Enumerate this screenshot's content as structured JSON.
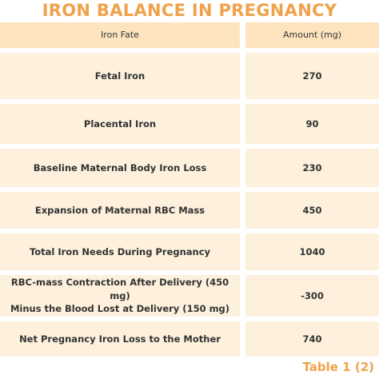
{
  "title": "IRON BALANCE IN PREGNANCY",
  "table": {
    "header": [
      "Iron Fate",
      "Amount (mg)"
    ],
    "rows": [
      [
        "Fetal Iron",
        270
      ],
      [
        "Placental Iron",
        90
      ],
      [
        "Baseline Maternal Body Iron Loss",
        230
      ],
      [
        "Expansion of Maternal RBC Mass",
        450
      ],
      [
        "Total Iron Needs During Pregnancy",
        1040
      ],
      [
        "RBC-mass Contraction After Delivery (450 mg)\nMinus the Blood Lost at Delivery (150 mg)",
        -300
      ],
      [
        "Net Pregnancy Iron Loss to the Mother",
        740
      ]
    ]
  },
  "caption": "Table 1 (2)"
}
